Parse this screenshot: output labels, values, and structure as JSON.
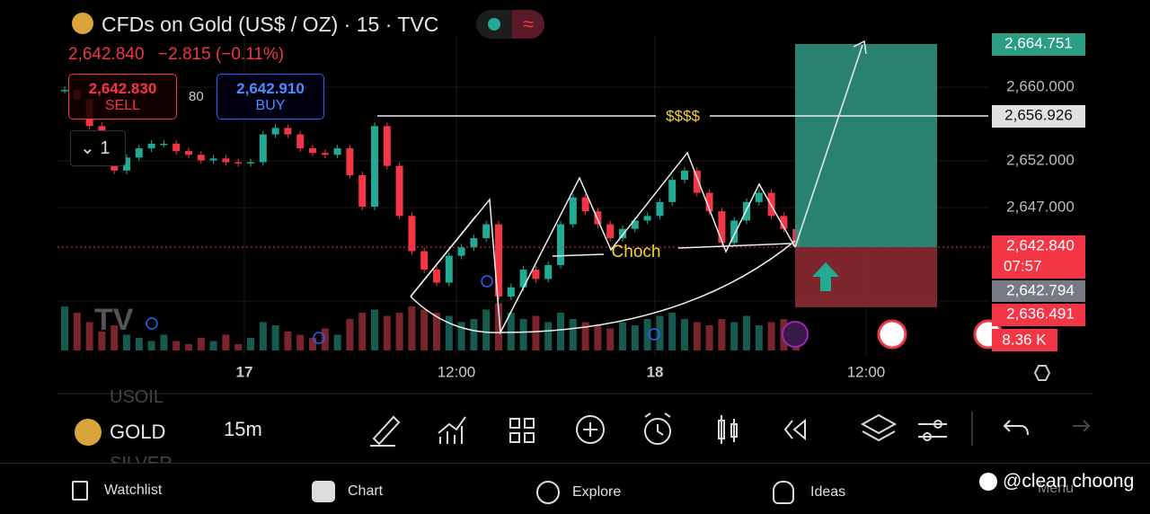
{
  "header": {
    "title": "CFDs on Gold (US$ / OZ) · 15 · TVC",
    "price": "2,642.840",
    "change": "−2.815 (−0.11%)",
    "sell_price": "2,642.830",
    "sell": "SELL",
    "spread": "80",
    "buy_price": "2,642.910",
    "buy": "BUY",
    "layout_count": "1"
  },
  "chart": {
    "ylim": [
      2631.58,
      2665.53
    ],
    "volume_lim": [
      0,
      100
    ],
    "closes": [
      2659.7,
      2658.7,
      2655.8,
      2652.4,
      2651.0,
      2652.4,
      2653.4,
      2653.9,
      2653.9,
      2653.1,
      2652.7,
      2652.1,
      2652.3,
      2651.9,
      2651.8,
      2651.9,
      2654.9,
      2655.6,
      2654.9,
      2653.4,
      2652.9,
      2652.7,
      2653.4,
      2650.5,
      2647.1,
      2655.8,
      2651.5,
      2646.1,
      2642.3,
      2640.3,
      2638.9,
      2641.8,
      2642.7,
      2643.7,
      2645.2,
      2637.4,
      2638.4,
      2640.3,
      2639.3,
      2640.8,
      2645.2,
      2648.1,
      2646.6,
      2645.2,
      2643.7,
      2644.7,
      2645.6,
      2646.1,
      2647.6,
      2650.0,
      2651.0,
      2648.6,
      2646.6,
      2643.2,
      2645.6,
      2647.6,
      2648.6,
      2646.1,
      2644.7,
      2642.8
    ],
    "volumes": [
      14,
      12,
      9,
      6,
      8,
      5,
      4,
      3,
      5,
      3,
      2,
      4,
      3,
      5,
      2,
      4,
      9,
      8,
      6,
      5,
      4,
      7,
      5,
      10,
      12,
      13,
      11,
      12,
      14,
      13,
      12,
      11,
      9,
      10,
      13,
      15,
      12,
      10,
      11,
      9,
      12,
      10,
      9,
      8,
      7,
      9,
      8,
      10,
      11,
      12,
      10,
      9,
      8,
      10,
      9,
      11,
      8,
      9,
      10,
      8.36
    ],
    "annotations": {
      "target": "$$$$",
      "choch": "Choch"
    },
    "price_axis": [
      "2,664.751",
      "2,660.000",
      "2,656.926",
      "2,652.000",
      "2,647.000",
      "2,642.840",
      "07:57",
      "2,642.794",
      "2,636.491",
      "8.36 K"
    ],
    "time_axis": [
      "17",
      "12:00",
      "18",
      "12:00"
    ]
  },
  "toolbar": {
    "symbol_above": "USOIL",
    "symbol": "GOLD",
    "symbol_below": "SILVER",
    "interval": "15m"
  },
  "nav": [
    "Watchlist",
    "Chart",
    "Explore",
    "Ideas",
    "Menu"
  ],
  "watermark": "@clean choong"
}
